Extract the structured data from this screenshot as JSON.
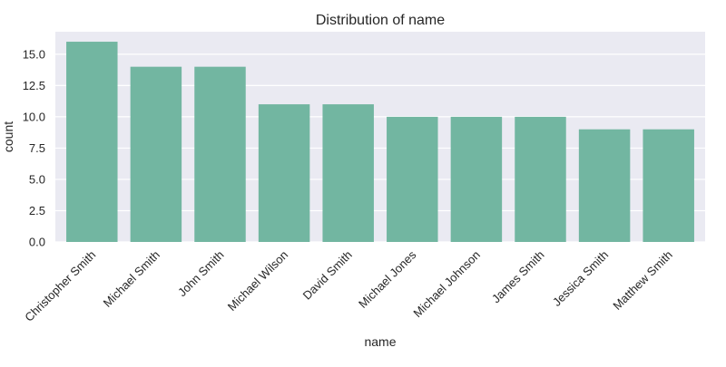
{
  "chart_data": {
    "type": "bar",
    "title": "Distribution of name",
    "xlabel": "name",
    "ylabel": "count",
    "categories": [
      "Christopher Smith",
      "Michael Smith",
      "John Smith",
      "Michael Wilson",
      "David Smith",
      "Michael Jones",
      "Michael Johnson",
      "James Smith",
      "Jessica Smith",
      "Matthew Smith"
    ],
    "values": [
      16,
      14,
      14,
      11,
      11,
      10,
      10,
      10,
      9,
      9
    ],
    "ylim": [
      0,
      16.8
    ],
    "yticks": [
      "0.0",
      "2.5",
      "5.0",
      "7.5",
      "10.0",
      "12.5",
      "15.0"
    ],
    "grid": true,
    "colors": {
      "bar": "#72b6a1",
      "background": "#eaeaf2",
      "grid": "#ffffff"
    }
  }
}
